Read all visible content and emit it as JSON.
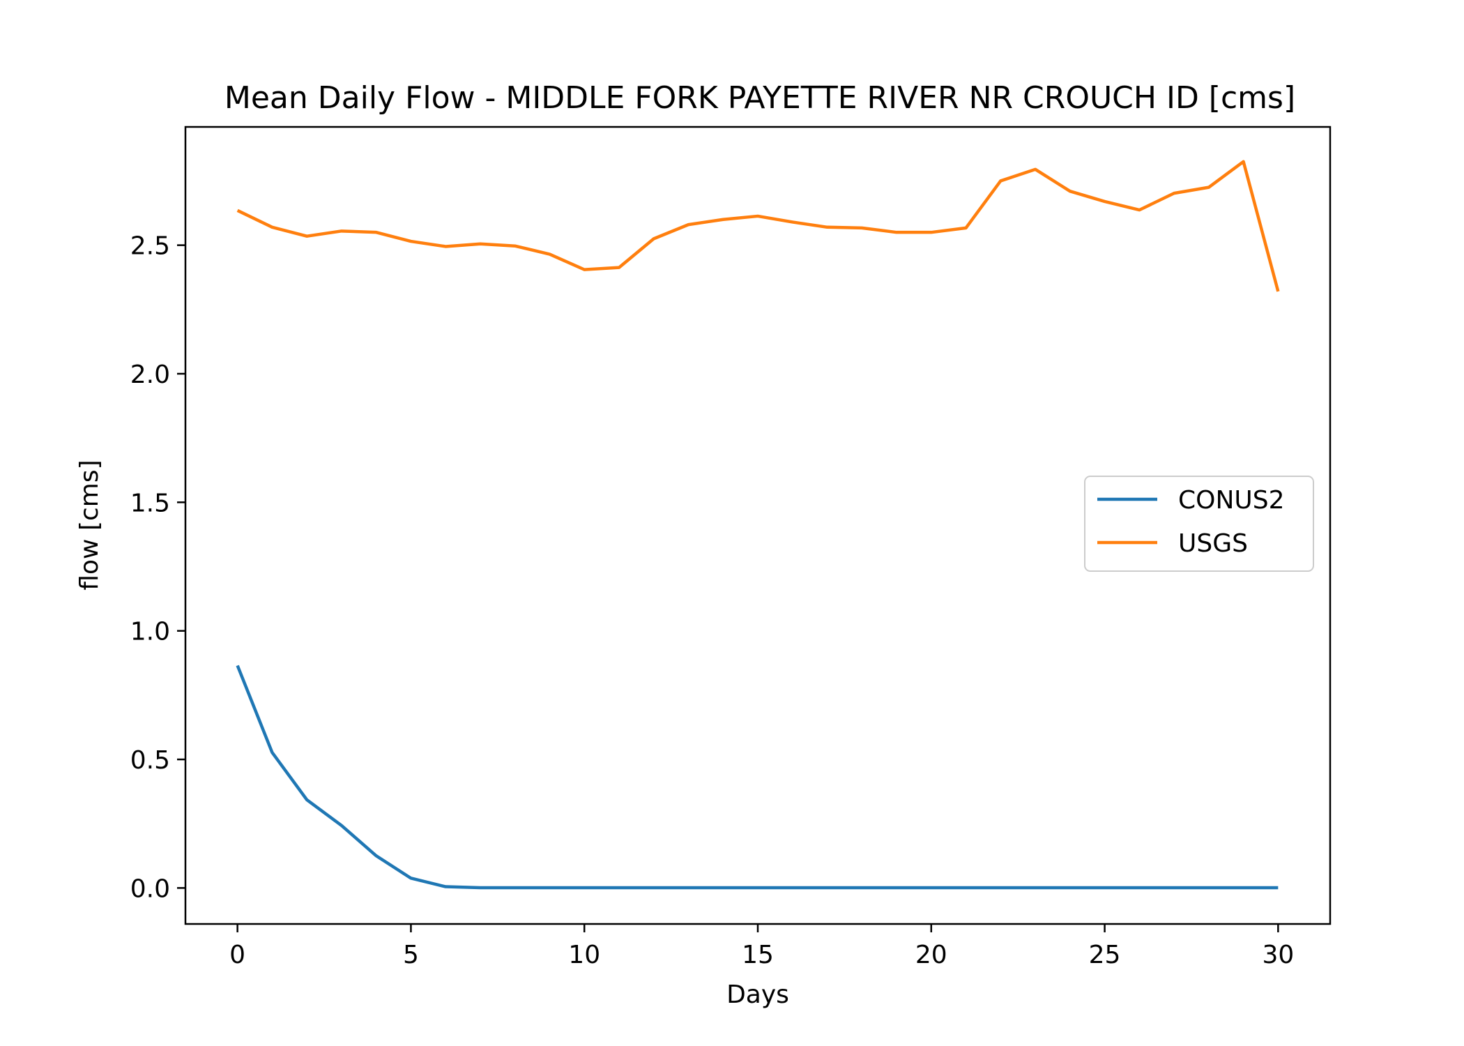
{
  "chart_data": {
    "type": "line",
    "title": "Mean Daily Flow - MIDDLE FORK PAYETTE RIVER NR CROUCH ID [cms]",
    "xlabel": "Days",
    "ylabel": "flow [cms]",
    "xlim": [
      -1.5,
      31.5
    ],
    "ylim": [
      -0.14,
      2.96
    ],
    "xticks": [
      0,
      5,
      10,
      15,
      20,
      25,
      30
    ],
    "yticks": [
      0.0,
      0.5,
      1.0,
      1.5,
      2.0,
      2.5
    ],
    "xtick_labels": [
      "0",
      "5",
      "10",
      "15",
      "20",
      "25",
      "30"
    ],
    "ytick_labels": [
      "0.0",
      "0.5",
      "1.0",
      "1.5",
      "2.0",
      "2.5"
    ],
    "grid": false,
    "legend_position": "center-right",
    "x": [
      0,
      1,
      2,
      3,
      4,
      5,
      6,
      7,
      8,
      9,
      10,
      11,
      12,
      13,
      14,
      15,
      16,
      17,
      18,
      19,
      20,
      21,
      22,
      23,
      24,
      25,
      26,
      27,
      28,
      29,
      30
    ],
    "series": [
      {
        "name": "CONUS2",
        "color": "#1f77b4",
        "values": [
          0.865,
          0.527,
          0.343,
          0.243,
          0.125,
          0.038,
          0.005,
          0.001,
          0.001,
          0.001,
          0.001,
          0.001,
          0.001,
          0.001,
          0.001,
          0.001,
          0.001,
          0.001,
          0.001,
          0.001,
          0.001,
          0.001,
          0.001,
          0.001,
          0.001,
          0.001,
          0.001,
          0.001,
          0.001,
          0.001,
          0.001
        ]
      },
      {
        "name": "USGS",
        "color": "#ff7f0e",
        "values": [
          2.635,
          2.57,
          2.535,
          2.555,
          2.55,
          2.515,
          2.495,
          2.505,
          2.497,
          2.465,
          2.405,
          2.413,
          2.525,
          2.58,
          2.6,
          2.613,
          2.59,
          2.57,
          2.567,
          2.55,
          2.55,
          2.567,
          2.75,
          2.795,
          2.71,
          2.67,
          2.637,
          2.702,
          2.725,
          2.825,
          2.32
        ]
      }
    ]
  }
}
